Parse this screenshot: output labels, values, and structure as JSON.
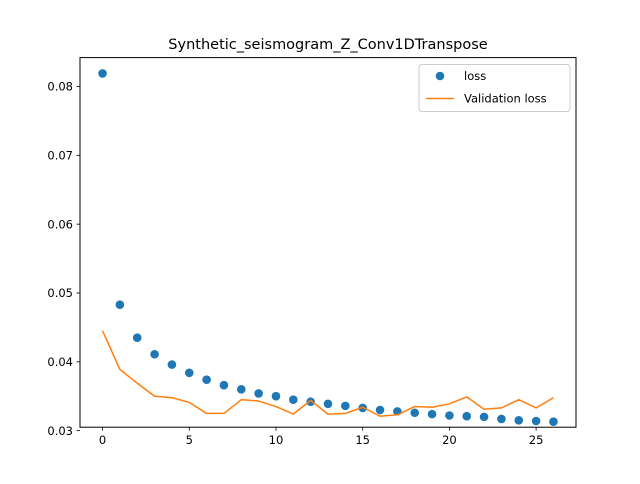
{
  "chart_data": {
    "type": "scatter",
    "title": "Synthetic_seismogram_Z_Conv1DTranspose",
    "xlabel": "",
    "ylabel": "",
    "xlim": [
      -1.3,
      27.3
    ],
    "ylim": [
      0.0305,
      0.0842
    ],
    "xticks": [
      0,
      5,
      10,
      15,
      20,
      25
    ],
    "yticks": [
      0.03,
      0.04,
      0.05,
      0.06,
      0.07,
      0.08
    ],
    "xtick_labels": [
      "0",
      "5",
      "10",
      "15",
      "20",
      "25"
    ],
    "ytick_labels": [
      "0.03",
      "0.04",
      "0.05",
      "0.06",
      "0.07",
      "0.08"
    ],
    "grid": false,
    "legend_position": "top-right",
    "x": [
      0,
      1,
      2,
      3,
      4,
      5,
      6,
      7,
      8,
      9,
      10,
      11,
      12,
      13,
      14,
      15,
      16,
      17,
      18,
      19,
      20,
      21,
      22,
      23,
      24,
      25,
      26
    ],
    "series": [
      {
        "name": "loss",
        "style": "markers",
        "color": "#1f77b4",
        "values": [
          0.0819,
          0.0483,
          0.0435,
          0.0411,
          0.0396,
          0.0384,
          0.0374,
          0.0366,
          0.036,
          0.0354,
          0.035,
          0.0345,
          0.0342,
          0.0339,
          0.0336,
          0.0333,
          0.033,
          0.0328,
          0.0326,
          0.0324,
          0.0322,
          0.0321,
          0.032,
          0.0317,
          0.0315,
          0.0314,
          0.0313
        ]
      },
      {
        "name": "Validation loss",
        "style": "line",
        "color": "#ff7f0e",
        "values": [
          0.0445,
          0.0389,
          0.0369,
          0.035,
          0.0348,
          0.0341,
          0.0325,
          0.0325,
          0.0345,
          0.0343,
          0.0335,
          0.0324,
          0.0344,
          0.0324,
          0.0325,
          0.0334,
          0.0321,
          0.0323,
          0.0335,
          0.0334,
          0.0339,
          0.0349,
          0.0331,
          0.0333,
          0.0345,
          0.0333,
          0.0348
        ]
      }
    ]
  }
}
